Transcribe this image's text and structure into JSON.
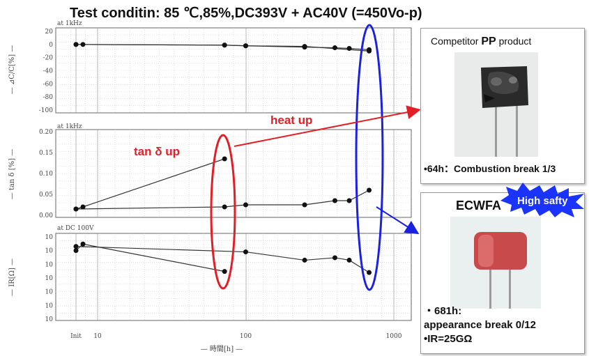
{
  "title": "Test conditin: 85 ℃,85%,DC393V + AC40V (=450Vo-p)",
  "annotations": {
    "heat_up": "heat  up",
    "tan_up": "tan δ   up"
  },
  "panels": {
    "capacitance": {
      "condition": "at 1kHz",
      "ylabel": "— ⊿C/C[%] —",
      "y_ticks": [
        "20",
        "0",
        "-20",
        "-40",
        "-60",
        "-80",
        "-100"
      ]
    },
    "tan_delta": {
      "condition": "at 1kHz",
      "ylabel": "— tan δ [%] —",
      "y_ticks": [
        "0.20",
        "0.15",
        "0.10",
        "0.05",
        "0.00"
      ]
    },
    "ir": {
      "condition": "at DC 100V",
      "ylabel": "— IR[Ω] —",
      "y_ticks": [
        "10",
        "10",
        "10",
        "10",
        "10",
        "10",
        "10"
      ]
    }
  },
  "x_ticks": [
    "Init",
    "10",
    "100",
    "1000"
  ],
  "xlabel": "— 時間[h] —",
  "competitor": {
    "title_prefix": "Competitor ",
    "title_bold": "PP",
    "title_suffix": " product",
    "note": "•64h：Combustion  break 1/3"
  },
  "ecwfa": {
    "title": "ECWFA",
    "badge": "High safty",
    "note_line1": "・681h:",
    "note_line2": "appearance  break  0/12",
    "note_line3": "•IR=25GΩ"
  },
  "colors": {
    "red_accent": "#e21f26",
    "blue_accent": "#1a22e0",
    "badge_blue": "#1a33ff",
    "capacitor_red": "#c94a4a",
    "capacitor_black": "#2a2a2a"
  },
  "chart_data": [
    {
      "type": "scatter",
      "panel": "capacitance",
      "ylabel": "⊿C/C[%]",
      "ylim": [
        -100,
        20
      ],
      "x_scale": "log",
      "xlim": [
        "Init",
        1000
      ],
      "series": [
        {
          "x": [
            "Init",
            "Init",
            72,
            100,
            250,
            400,
            500,
            681
          ],
          "y": [
            0,
            0,
            -1,
            -2,
            -4,
            -5,
            -6,
            -8
          ]
        },
        {
          "x": [
            "Init",
            72,
            100,
            250,
            681
          ],
          "y": [
            0,
            -1,
            -2,
            -3,
            -10
          ]
        }
      ]
    },
    {
      "type": "scatter",
      "panel": "tan_delta",
      "ylabel": "tan δ[%]",
      "ylim": [
        0,
        0.2
      ],
      "x_scale": "log",
      "series": [
        {
          "x": [
            "Init",
            "Init",
            72
          ],
          "y": [
            0.015,
            0.02,
            0.135
          ]
        },
        {
          "x": [
            "Init",
            72,
            100,
            250,
            400,
            500,
            681
          ],
          "y": [
            0.015,
            0.02,
            0.025,
            0.025,
            0.035,
            0.035,
            0.06
          ]
        }
      ]
    },
    {
      "type": "scatter",
      "panel": "ir",
      "ylabel": "IR[Ω]",
      "x_scale": "log",
      "series": [
        {
          "x": [
            "Init",
            "Init",
            72
          ],
          "y": [
            1000000000000.0,
            3000000000000.0,
            30000000000.0
          ]
        },
        {
          "x": [
            "Init",
            100,
            250,
            400,
            500,
            681
          ],
          "y": [
            2000000000000.0,
            800000000000.0,
            200000000000.0,
            300000000000.0,
            200000000000.0,
            25000000000.0
          ]
        }
      ]
    }
  ]
}
